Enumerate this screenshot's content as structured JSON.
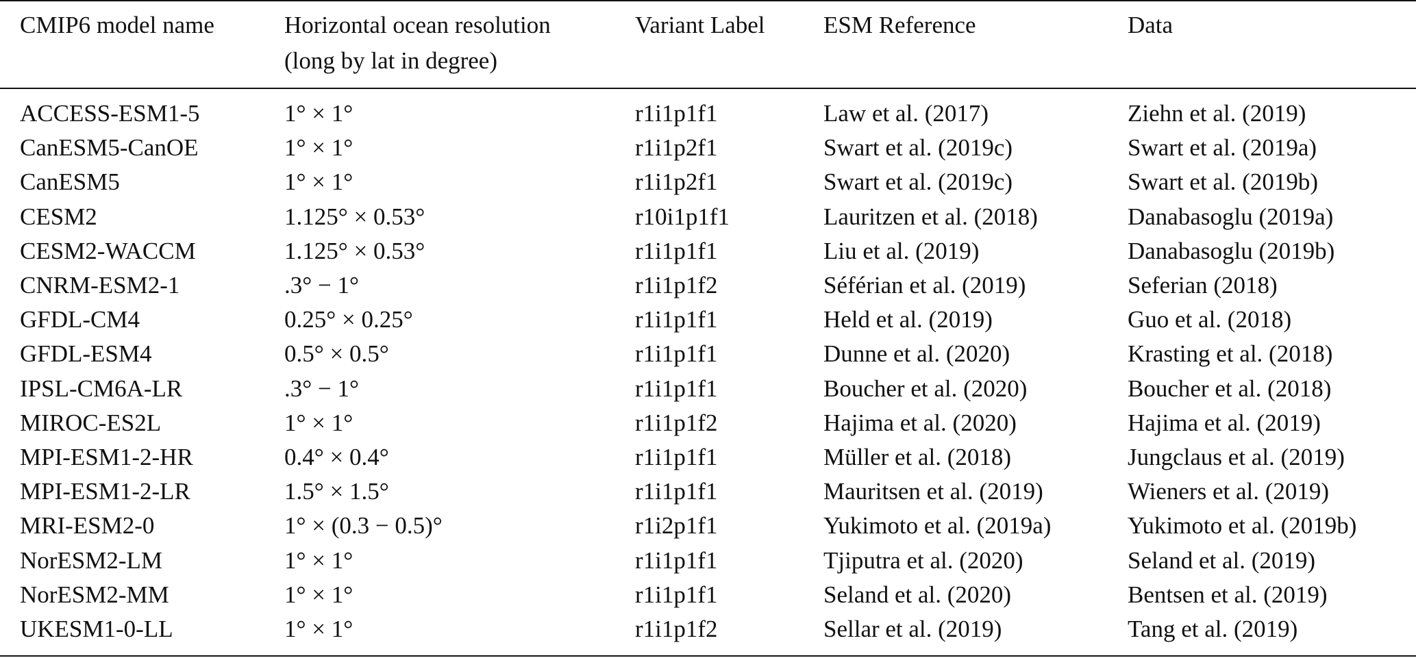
{
  "table": {
    "header": [
      [
        "CMIP6 model name"
      ],
      [
        "Horizontal ocean resolution",
        "(long by lat in degree)"
      ],
      [
        "Variant Label"
      ],
      [
        "ESM Reference"
      ],
      [
        "Data"
      ]
    ],
    "rows": [
      [
        "ACCESS-ESM1-5",
        "1° × 1°",
        "r1i1p1f1",
        "Law et al. (2017)",
        "Ziehn et al. (2019)"
      ],
      [
        "CanESM5-CanOE",
        "1° × 1°",
        "r1i1p2f1",
        "Swart et al. (2019c)",
        "Swart et al. (2019a)"
      ],
      [
        "CanESM5",
        "1° × 1°",
        "r1i1p2f1",
        "Swart et al. (2019c)",
        "Swart et al. (2019b)"
      ],
      [
        "CESM2",
        "1.125° × 0.53°",
        "r10i1p1f1",
        "Lauritzen et al. (2018)",
        "Danabasoglu (2019a)"
      ],
      [
        "CESM2-WACCM",
        "1.125° × 0.53°",
        "r1i1p1f1",
        "Liu et al. (2019)",
        "Danabasoglu (2019b)"
      ],
      [
        "CNRM-ESM2-1",
        ".3° − 1°",
        "r1i1p1f2",
        "Séférian et al. (2019)",
        "Seferian (2018)"
      ],
      [
        "GFDL-CM4",
        "0.25° × 0.25°",
        "r1i1p1f1",
        "Held et al. (2019)",
        "Guo et al. (2018)"
      ],
      [
        "GFDL-ESM4",
        "0.5° × 0.5°",
        "r1i1p1f1",
        "Dunne et al. (2020)",
        "Krasting et al. (2018)"
      ],
      [
        "IPSL-CM6A-LR",
        ".3° − 1°",
        "r1i1p1f1",
        "Boucher et al. (2020)",
        "Boucher et al. (2018)"
      ],
      [
        "MIROC-ES2L",
        "1° × 1°",
        "r1i1p1f2",
        "Hajima et al. (2020)",
        "Hajima et al. (2019)"
      ],
      [
        "MPI-ESM1-2-HR",
        "0.4° × 0.4°",
        "r1i1p1f1",
        "Müller et al. (2018)",
        "Jungclaus et al. (2019)"
      ],
      [
        "MPI-ESM1-2-LR",
        "1.5° × 1.5°",
        "r1i1p1f1",
        "Mauritsen et al. (2019)",
        "Wieners et al. (2019)"
      ],
      [
        "MRI-ESM2-0",
        "1° × (0.3 − 0.5)°",
        "r1i2p1f1",
        "Yukimoto et al. (2019a)",
        "Yukimoto et al. (2019b)"
      ],
      [
        "NorESM2-LM",
        "1° × 1°",
        "r1i1p1f1",
        "Tjiputra et al. (2020)",
        "Seland et al. (2019)"
      ],
      [
        "NorESM2-MM",
        "1° × 1°",
        "r1i1p1f1",
        "Seland et al. (2020)",
        "Bentsen et al. (2019)"
      ],
      [
        "UKESM1-0-LL",
        "1° × 1°",
        "r1i1p1f2",
        "Sellar et al. (2019)",
        "Tang et al. (2019)"
      ]
    ]
  }
}
